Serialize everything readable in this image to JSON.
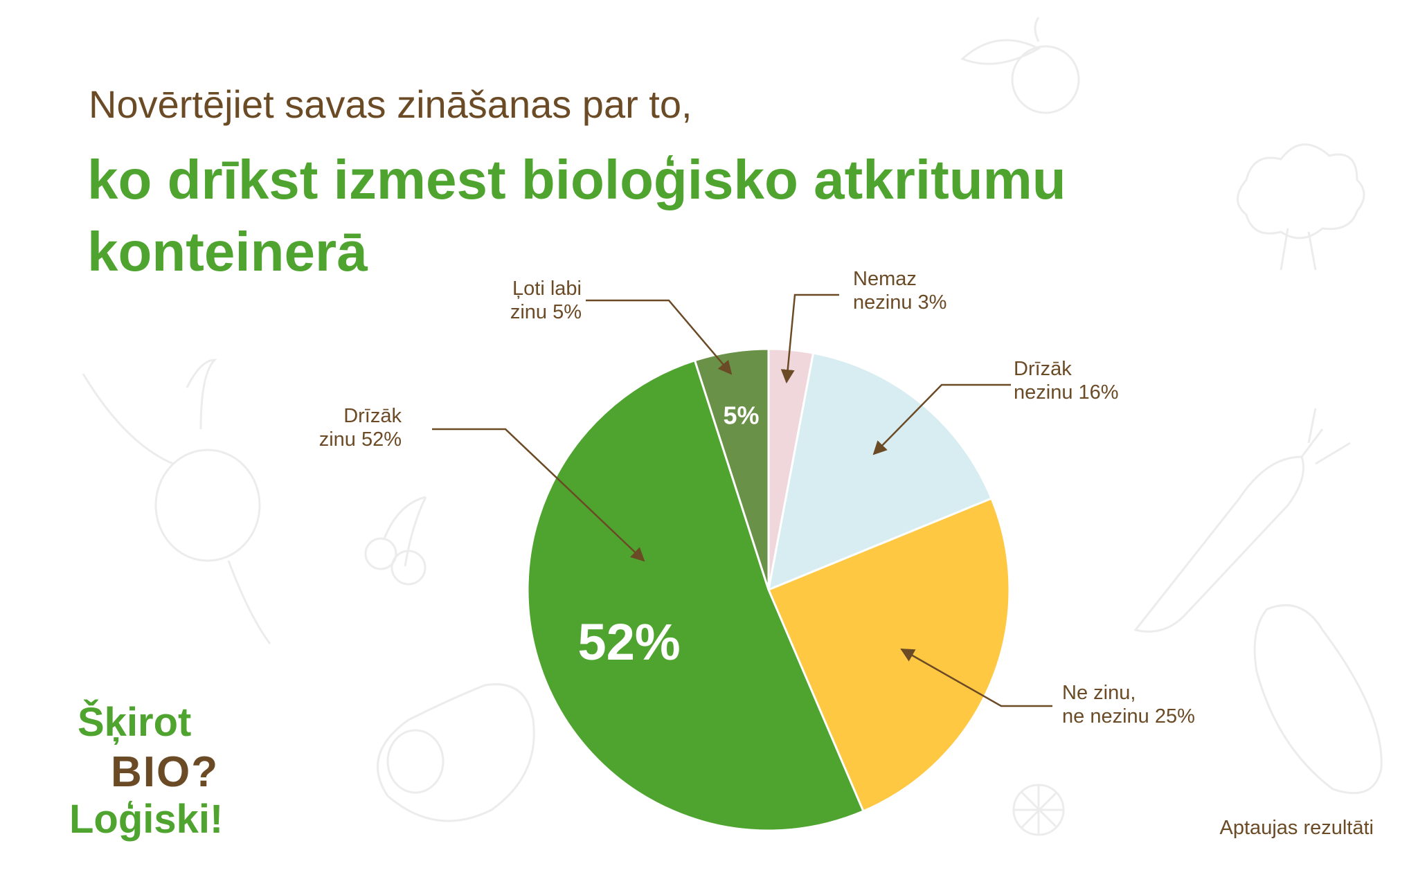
{
  "title": {
    "line1": "Novērtējiet savas zināšanas par to,",
    "line2": "ko drīkst izmest bioloģisko atkritumu konteinerā"
  },
  "chart_data": {
    "type": "pie",
    "categories": [
      "Nemaz nezinu",
      "Drīzāk nezinu",
      "Ne zinu, ne nezinu",
      "Drīzāk zinu",
      "Ļoti labi zinu"
    ],
    "values": [
      3,
      16,
      25,
      52,
      5
    ],
    "unit": "%",
    "colors": [
      "#f0d7db",
      "#d8edf1",
      "#ffc843",
      "#4ea42f",
      "#6a9148"
    ],
    "callouts": [
      {
        "line1": "Nemaz",
        "line2": "nezinu 3%"
      },
      {
        "line1": "Drīzāk",
        "line2": "nezinu 16%"
      },
      {
        "line1": "Ne zinu,",
        "line2": "ne nezinu 25%"
      },
      {
        "line1": "Drīzāk",
        "line2": "zinu 52%"
      },
      {
        "line1": "Ļoti labi",
        "line2": "zinu 5%"
      }
    ],
    "inner_labels": [
      "",
      "",
      "",
      "52%",
      "5%"
    ]
  },
  "footer": {
    "note": "Aptaujas rezultāti"
  },
  "logo": {
    "line1": "Šķirot",
    "line2": "BIO?",
    "line3": "Loģiski!"
  },
  "colors": {
    "brown": "#6b4a26",
    "green": "#4ea42f"
  }
}
